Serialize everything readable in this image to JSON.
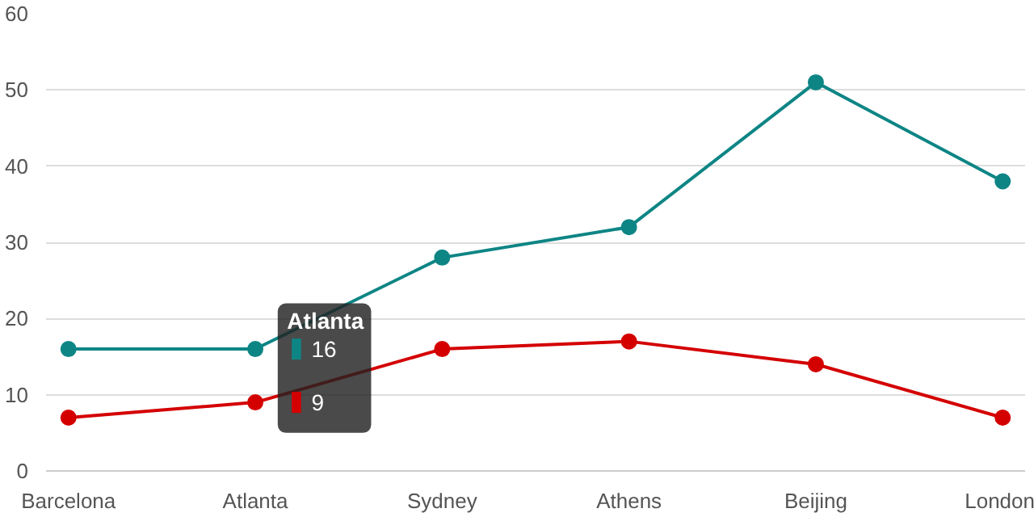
{
  "chart_data": {
    "type": "line",
    "categories": [
      "Barcelona",
      "Atlanta",
      "Sydney",
      "Athens",
      "Beijing",
      "London"
    ],
    "series": [
      {
        "color": "#0e8585",
        "values": [
          16,
          16,
          28,
          32,
          51,
          38
        ]
      },
      {
        "color": "#d40000",
        "values": [
          7,
          9,
          16,
          17,
          14,
          7
        ]
      }
    ],
    "annotations": [
      {
        "text": "Atlanta",
        "x": "Atlanta",
        "y": 16
      },
      {
        "text": "16",
        "x": "Atlanta",
        "y": 16
      },
      {
        "text": "9",
        "x": "Atlanta",
        "y": 9
      }
    ],
    "ylim": [
      0,
      60
    ],
    "yticks": [
      0,
      10,
      20,
      30,
      40,
      50,
      60
    ],
    "grid": "y",
    "marker": "circle",
    "line_style": "solid"
  }
}
